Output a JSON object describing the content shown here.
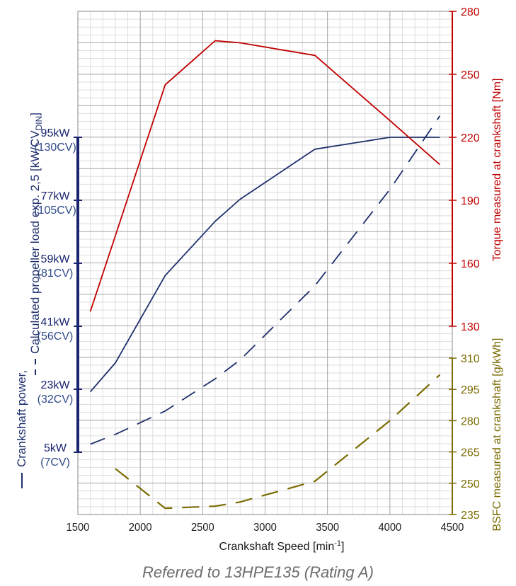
{
  "caption": "Referred to 13HPE135 (Rating A)",
  "colors": {
    "power": "#1f2f6b",
    "power_axis": "#18246e",
    "power_label": "#2f4a8a",
    "torque": "#c00000",
    "bsfc": "#7a6a00",
    "grid_major": "#a8a8a8",
    "grid_minor": "#dedede",
    "text": "#1a1a1a"
  },
  "chart_data": {
    "type": "line",
    "xlabel": "Crankshaft Speed [min",
    "xlabel_sup": "-1",
    "xlabel_end": "]",
    "xlim": [
      1500,
      4500
    ],
    "x_ticks": [
      1500,
      2000,
      2500,
      3000,
      3500,
      4000,
      4500
    ],
    "grid": true,
    "axes": {
      "power": {
        "side": "left",
        "label_power": "Crankshaft power,",
        "label_prop_pre": "Calculated propeller load exp. 2,5 [kW/CV",
        "label_prop_sub": "DIN",
        "label_prop_post": "]",
        "lim_kw": [
          -13,
          113
        ],
        "ticks": [
          {
            "kw": 5,
            "kw_label": "5kW",
            "cv_label": "(7CV)"
          },
          {
            "kw": 23,
            "kw_label": "23kW",
            "cv_label": "(32CV)"
          },
          {
            "kw": 41,
            "kw_label": "41kW",
            "cv_label": "(56CV)"
          },
          {
            "kw": 59,
            "kw_label": "59kW",
            "cv_label": "(81CV)"
          },
          {
            "kw": 77,
            "kw_label": "77kW",
            "cv_label": "(105CV)"
          },
          {
            "kw": 95,
            "kw_label": "95kW",
            "cv_label": "(130CV)"
          }
        ]
      },
      "torque": {
        "side": "right",
        "label": "Torque measured at crankshaft [Nm]",
        "lim": [
          130,
          280
        ],
        "ticks": [
          130,
          160,
          190,
          220,
          250,
          280
        ]
      },
      "bsfc": {
        "side": "right",
        "label": "BSFC measured at crankshaft [g/kWh]",
        "lim": [
          235,
          310
        ],
        "ticks": [
          235,
          250,
          265,
          280,
          295,
          310
        ]
      }
    },
    "series": [
      {
        "axis": "power",
        "style": "solid",
        "x": [
          1600,
          1800,
          2200,
          2600,
          2800,
          3400,
          4000,
          4400
        ],
        "y": [
          22.3,
          30.5,
          55.5,
          71,
          77.3,
          91.6,
          95,
          95
        ]
      },
      {
        "axis": "power",
        "style": "dashed",
        "x": [
          1600,
          1800,
          2200,
          2600,
          2800,
          3400,
          4000,
          4400
        ],
        "y": [
          7.3,
          10.1,
          16.8,
          26,
          31.4,
          52.6,
          80.1,
          101.1
        ]
      },
      {
        "axis": "torque",
        "style": "solid",
        "x": [
          1600,
          1800,
          2200,
          2600,
          2800,
          3400,
          4000,
          4400
        ],
        "y": [
          137,
          173,
          245,
          266,
          265,
          259,
          228,
          207
        ]
      },
      {
        "axis": "bsfc",
        "style": "dashed",
        "x": [
          1800,
          2200,
          2600,
          2800,
          3400,
          4000,
          4400
        ],
        "y": [
          257,
          238,
          239,
          241,
          251,
          280,
          302
        ]
      }
    ]
  }
}
